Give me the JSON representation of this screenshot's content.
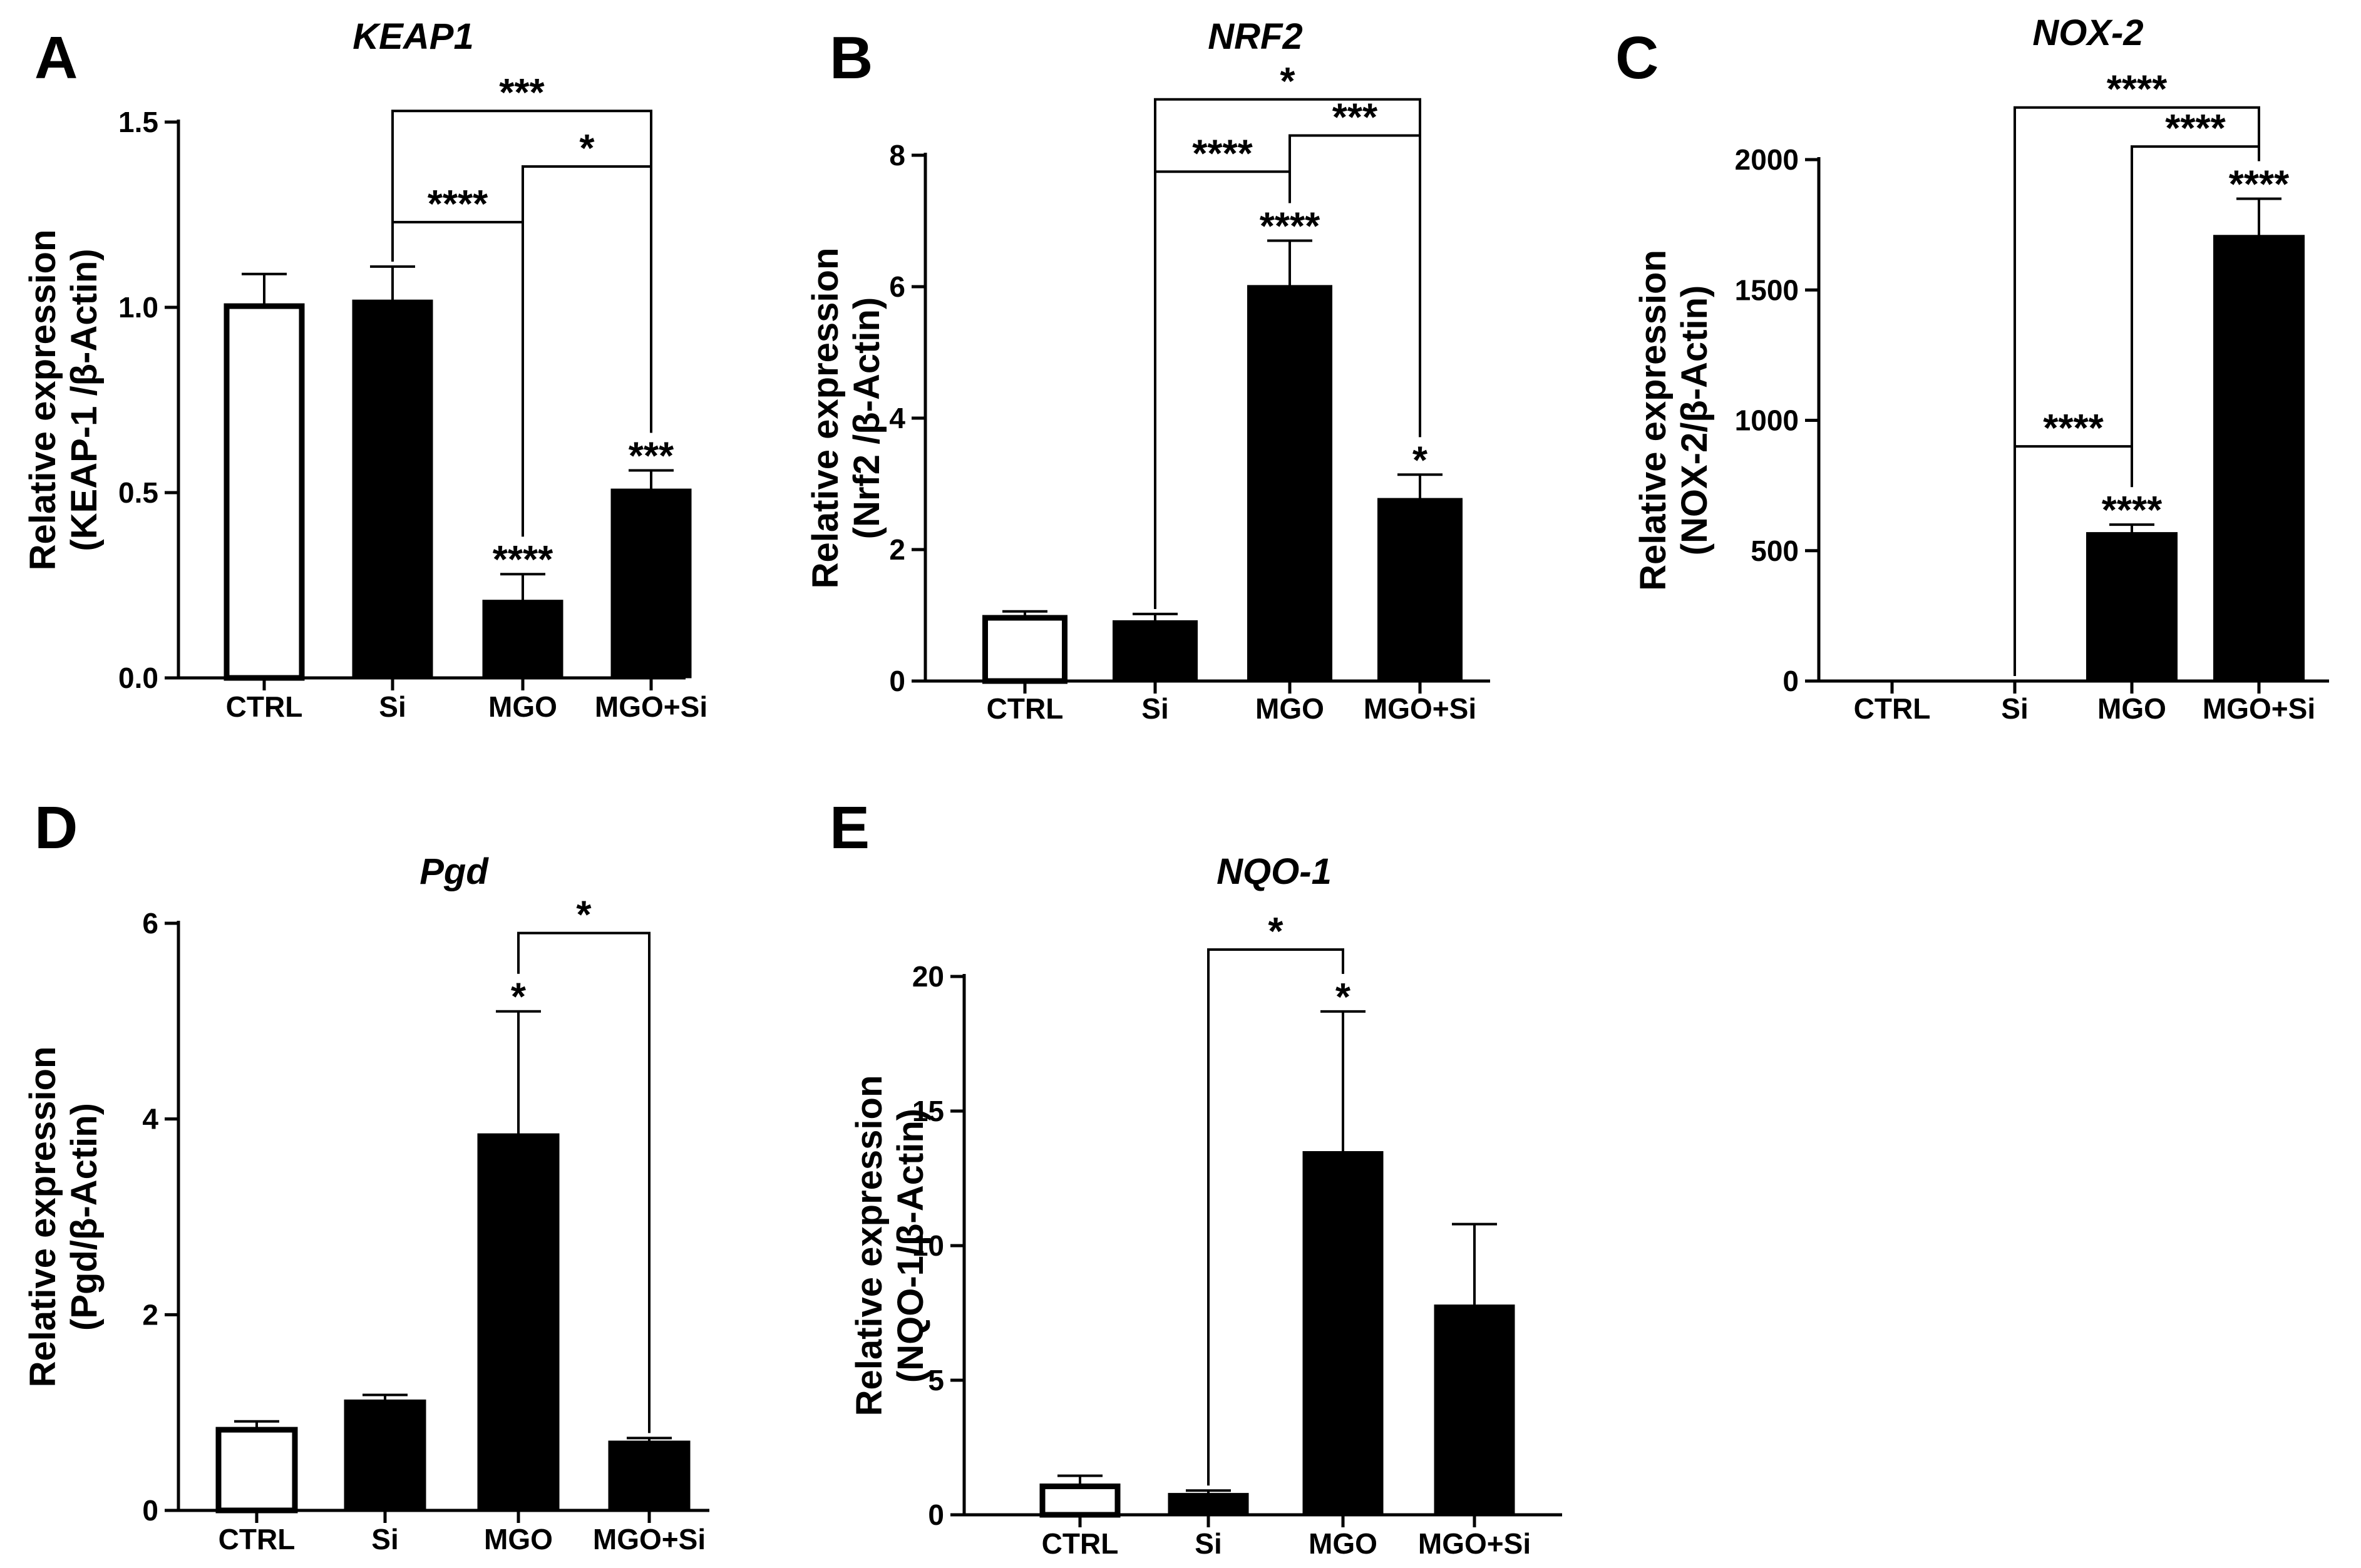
{
  "figure": {
    "panels": [
      "A",
      "B",
      "C",
      "D",
      "E"
    ]
  },
  "chart_data": [
    {
      "panel": "A",
      "type": "bar",
      "title": "KEAP1",
      "ylabel_line1": "Relative expression",
      "ylabel_line2": "(KEAP-1 /β-Actin)",
      "xlabel": "",
      "categories": [
        "CTRL",
        "Si",
        "MGO",
        "MGO+Si"
      ],
      "values": [
        1.01,
        1.02,
        0.21,
        0.51
      ],
      "errors": [
        0.08,
        0.09,
        0.07,
        0.05
      ],
      "ylim": [
        0,
        1.5
      ],
      "yticks": [
        0.0,
        0.5,
        1.0,
        1.5
      ],
      "ytick_labels": [
        "0.0",
        "0.5",
        "1.0",
        "1.5"
      ],
      "bar_stars": [
        "",
        "",
        "****",
        "***"
      ],
      "brackets": [
        {
          "from": 1,
          "to": 3,
          "y": 1.53,
          "label": "***"
        },
        {
          "from": 2,
          "to": 3,
          "y": 1.38,
          "label": "*"
        },
        {
          "from": 1,
          "to": 2,
          "y": 1.23,
          "label": "****"
        }
      ]
    },
    {
      "panel": "B",
      "type": "bar",
      "title": "NRF2",
      "ylabel_line1": "Relative expression",
      "ylabel_line2": "(Nrf2 /β-Actin)",
      "xlabel": "",
      "categories": [
        "CTRL",
        "Si",
        "MGO",
        "MGO+Si"
      ],
      "values": [
        1.0,
        0.92,
        6.02,
        2.78
      ],
      "errors": [
        0.06,
        0.1,
        0.68,
        0.36
      ],
      "ylim": [
        0,
        8
      ],
      "yticks": [
        0,
        2,
        4,
        6,
        8
      ],
      "ytick_labels": [
        "0",
        "2",
        "4",
        "6",
        "8"
      ],
      "bar_stars": [
        "",
        "",
        "****",
        "*"
      ],
      "brackets": [
        {
          "from": 1,
          "to": 3,
          "y": 8.85,
          "label": "*"
        },
        {
          "from": 2,
          "to": 3,
          "y": 8.3,
          "label": "***"
        },
        {
          "from": 1,
          "to": 2,
          "y": 7.75,
          "label": "****"
        }
      ]
    },
    {
      "panel": "C",
      "type": "bar",
      "title": "NOX-2",
      "ylabel_line1": "Relative expression",
      "ylabel_line2": "(NOX-2/β-Actin)",
      "xlabel": "",
      "categories": [
        "CTRL",
        "Si",
        "MGO",
        "MGO+Si"
      ],
      "values": [
        0,
        0,
        570,
        1710
      ],
      "errors": [
        0,
        0,
        30,
        140
      ],
      "ylim": [
        0,
        2000
      ],
      "yticks": [
        0,
        500,
        1000,
        1500,
        2000
      ],
      "ytick_labels": [
        "0",
        "500",
        "1000",
        "1500",
        "2000"
      ],
      "bar_stars": [
        "",
        "",
        "****",
        "****"
      ],
      "brackets": [
        {
          "from": 1,
          "to": 3,
          "y": 2200,
          "label": "****"
        },
        {
          "from": 2,
          "to": 3,
          "y": 2050,
          "label": "****"
        },
        {
          "from": 1,
          "to": 2,
          "y": 900,
          "label": "****"
        }
      ]
    },
    {
      "panel": "D",
      "type": "bar",
      "title": "Pgd",
      "ylabel_line1": "Relative expression",
      "ylabel_line2": "(Pgd/β-Actin)",
      "xlabel": "",
      "categories": [
        "CTRL",
        "Si",
        "MGO",
        "MGO+Si"
      ],
      "values": [
        0.85,
        1.13,
        3.85,
        0.71
      ],
      "errors": [
        0.06,
        0.05,
        1.25,
        0.03
      ],
      "ylim": [
        0,
        6
      ],
      "yticks": [
        0,
        2,
        4,
        6
      ],
      "ytick_labels": [
        "0",
        "2",
        "4",
        "6"
      ],
      "bar_stars": [
        "",
        "",
        "*",
        ""
      ],
      "brackets": [
        {
          "from": 2,
          "to": 3,
          "y": 5.9,
          "label": "*"
        }
      ]
    },
    {
      "panel": "E",
      "type": "bar",
      "title": "NQO-1",
      "ylabel_line1": "Relative expression",
      "ylabel_line2": "(NQO-1/β-Actin)",
      "xlabel": "",
      "categories": [
        "CTRL",
        "Si",
        "MGO",
        "MGO+Si"
      ],
      "values": [
        1.15,
        0.8,
        13.5,
        7.8
      ],
      "errors": [
        0.3,
        0.1,
        5.2,
        3.0
      ],
      "ylim": [
        0,
        20
      ],
      "yticks": [
        0,
        5,
        10,
        15,
        20
      ],
      "ytick_labels": [
        "0",
        "5",
        "10",
        "15",
        "20"
      ],
      "bar_stars": [
        "",
        "",
        "*",
        ""
      ],
      "brackets": [
        {
          "from": 1,
          "to": 2,
          "y": 21.0,
          "label": "*"
        }
      ]
    }
  ]
}
